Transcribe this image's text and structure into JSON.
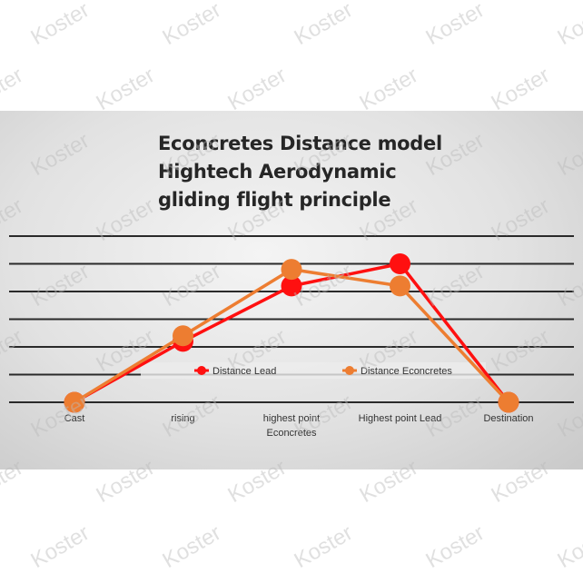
{
  "watermark": "Koster",
  "chart_data": {
    "type": "line",
    "title_lines": [
      "Econcretes Distance model",
      "Hightech Aerodynamic",
      "gliding flight principle"
    ],
    "categories": [
      "Cast",
      "rising",
      "highest point Econcretes",
      "Highest point Lead",
      "Destination"
    ],
    "category_lines": [
      [
        "Cast"
      ],
      [
        "rising"
      ],
      [
        "highest point",
        "Econcretes"
      ],
      [
        "Highest point Lead"
      ],
      [
        "Destination"
      ]
    ],
    "ylim": [
      0,
      6
    ],
    "grid": true,
    "legend_placement": "center-bottom",
    "series": [
      {
        "name": "Distance Lead",
        "color": "#ff1010",
        "values": [
          0,
          2.2,
          4.2,
          5.0,
          0
        ]
      },
      {
        "name": "Distance Econcretes",
        "color": "#ed7d31",
        "values": [
          0,
          2.4,
          4.8,
          4.2,
          0
        ]
      }
    ]
  }
}
